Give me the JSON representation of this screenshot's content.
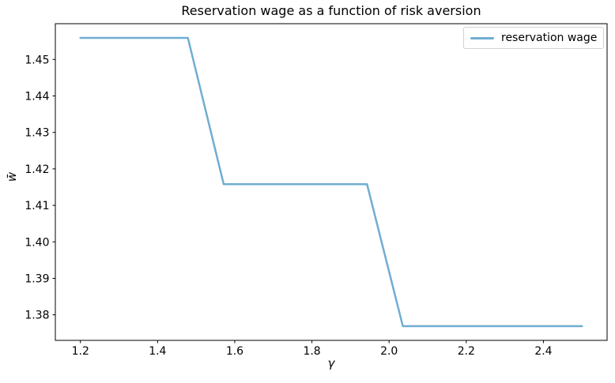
{
  "chart_data": {
    "type": "line",
    "title": "Reservation wage as a function of risk aversion",
    "xlabel": "γ",
    "ylabel": "w̄",
    "grid": false,
    "legend_position": "upper right",
    "xlim": [
      1.135,
      2.565
    ],
    "ylim": [
      1.373,
      1.4598
    ],
    "x_ticks": {
      "values": [
        1.2,
        1.4,
        1.6,
        1.8,
        2.0,
        2.2,
        2.4
      ],
      "labels": [
        "1.2",
        "1.4",
        "1.6",
        "1.8",
        "2.0",
        "2.2",
        "2.4"
      ]
    },
    "y_ticks": {
      "values": [
        1.38,
        1.39,
        1.4,
        1.41,
        1.42,
        1.43,
        1.44,
        1.45
      ],
      "labels": [
        "1.38",
        "1.39",
        "1.40",
        "1.41",
        "1.42",
        "1.43",
        "1.44",
        "1.45"
      ]
    },
    "series": [
      {
        "name": "reservation wage",
        "color": "#70add2",
        "x": [
          1.2,
          1.2929,
          1.3857,
          1.4786,
          1.5714,
          1.6643,
          1.7571,
          1.85,
          1.9429,
          2.0357,
          2.1286,
          2.2214,
          2.3143,
          2.4071,
          2.5
        ],
        "values": [
          1.4559,
          1.4559,
          1.4559,
          1.4559,
          1.4158,
          1.4158,
          1.4158,
          1.4158,
          1.4158,
          1.3769,
          1.3769,
          1.3769,
          1.3769,
          1.3769,
          1.3769
        ]
      }
    ]
  },
  "colors": {
    "line": "#70add2",
    "spine": "#000000",
    "background": "#ffffff",
    "legend_border": "#d2d2d2"
  }
}
